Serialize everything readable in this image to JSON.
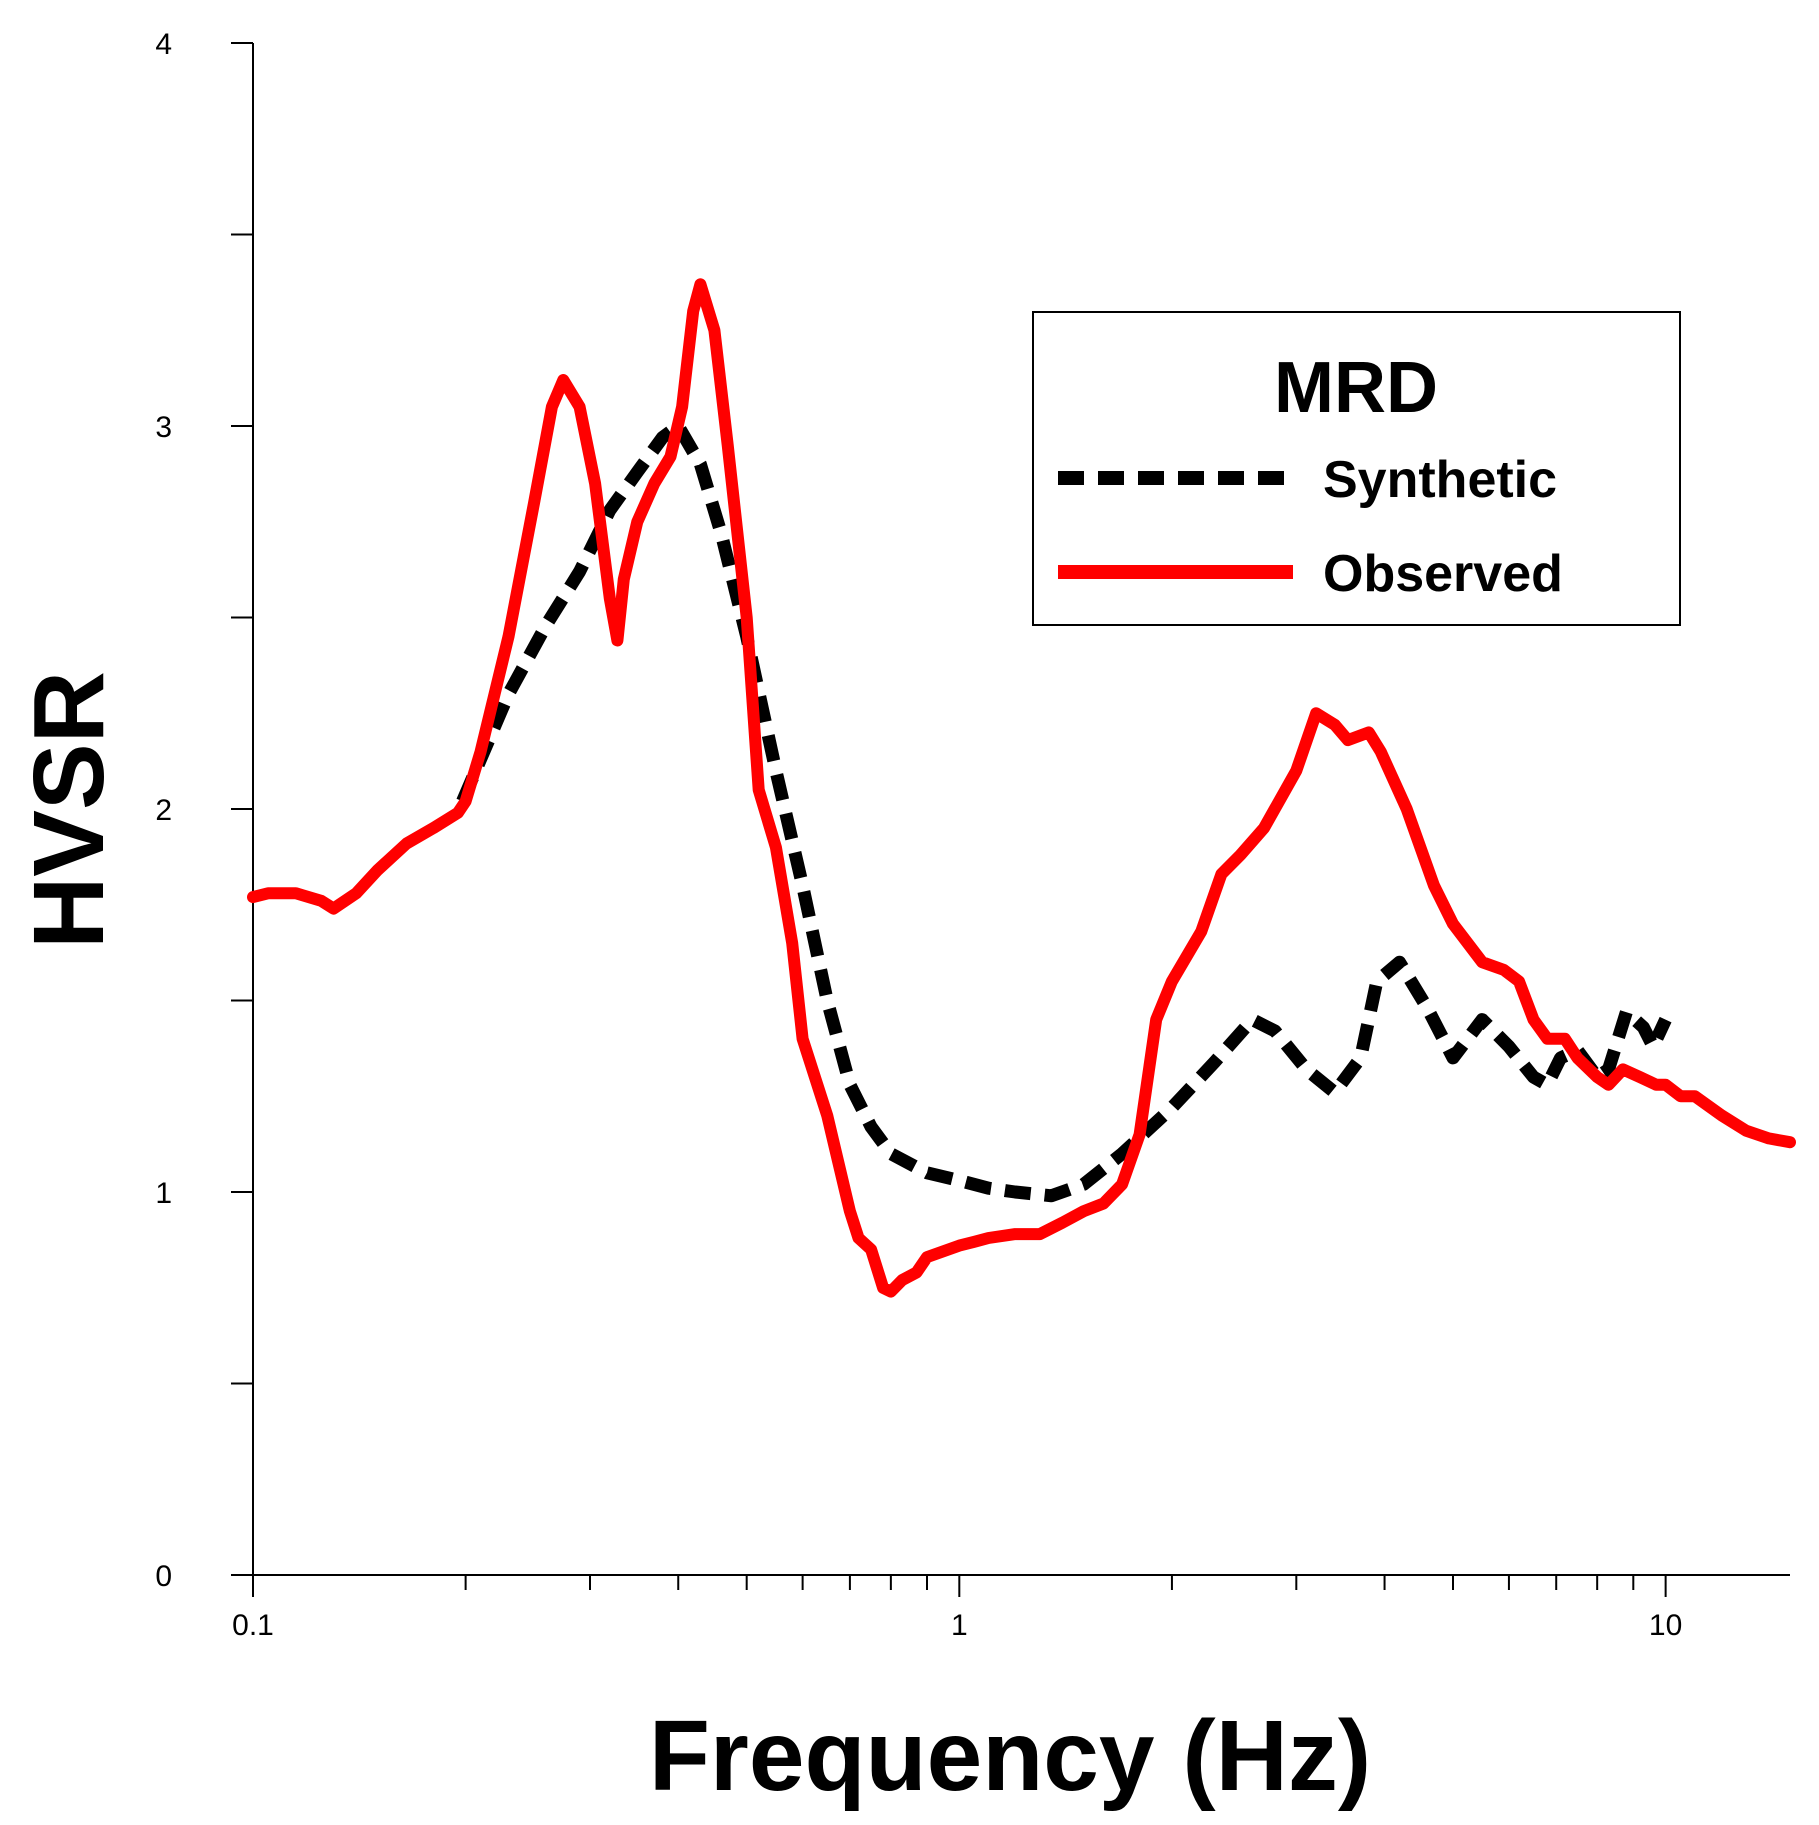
{
  "chart_data": {
    "type": "line",
    "title": "",
    "xlabel": "Frequency (Hz)",
    "ylabel": "HVSR",
    "xscale": "log",
    "xlim": [
      0.1,
      15
    ],
    "ylim": [
      0,
      4
    ],
    "xticks": [
      {
        "value": 0.1,
        "label": "0.1"
      },
      {
        "value": 1,
        "label": "1"
      },
      {
        "value": 10,
        "label": "10"
      }
    ],
    "yticks": [
      {
        "value": 0,
        "label": "0"
      },
      {
        "value": 1,
        "label": "1"
      },
      {
        "value": 2,
        "label": "2"
      },
      {
        "value": 3,
        "label": "3"
      },
      {
        "value": 4,
        "label": "4"
      }
    ],
    "legend": {
      "title": "MRD",
      "position": "top-right"
    },
    "series": [
      {
        "name": "Synthetic",
        "color": "#000000",
        "style": "dashed",
        "points": [
          [
            0.198,
            2.02
          ],
          [
            0.23,
            2.3
          ],
          [
            0.26,
            2.48
          ],
          [
            0.29,
            2.62
          ],
          [
            0.32,
            2.78
          ],
          [
            0.35,
            2.88
          ],
          [
            0.38,
            2.97
          ],
          [
            0.4,
            3.0
          ],
          [
            0.43,
            2.9
          ],
          [
            0.46,
            2.72
          ],
          [
            0.5,
            2.45
          ],
          [
            0.55,
            2.1
          ],
          [
            0.6,
            1.8
          ],
          [
            0.65,
            1.5
          ],
          [
            0.7,
            1.28
          ],
          [
            0.75,
            1.17
          ],
          [
            0.8,
            1.1
          ],
          [
            0.9,
            1.05
          ],
          [
            1.0,
            1.03
          ],
          [
            1.1,
            1.01
          ],
          [
            1.2,
            1.0
          ],
          [
            1.35,
            0.99
          ],
          [
            1.5,
            1.02
          ],
          [
            1.7,
            1.1
          ],
          [
            2.0,
            1.22
          ],
          [
            2.3,
            1.34
          ],
          [
            2.6,
            1.45
          ],
          [
            2.8,
            1.42
          ],
          [
            3.1,
            1.32
          ],
          [
            3.4,
            1.26
          ],
          [
            3.7,
            1.35
          ],
          [
            3.9,
            1.55
          ],
          [
            4.2,
            1.6
          ],
          [
            4.6,
            1.48
          ],
          [
            5.0,
            1.35
          ],
          [
            5.5,
            1.45
          ],
          [
            6.0,
            1.38
          ],
          [
            6.5,
            1.3
          ],
          [
            6.8,
            1.28
          ],
          [
            7.1,
            1.35
          ],
          [
            7.5,
            1.37
          ],
          [
            8.0,
            1.3
          ],
          [
            8.3,
            1.32
          ],
          [
            8.8,
            1.47
          ],
          [
            9.3,
            1.43
          ],
          [
            9.6,
            1.38
          ],
          [
            10.0,
            1.45
          ]
        ]
      },
      {
        "name": "Observed",
        "color": "#ff0000",
        "style": "solid",
        "points": [
          [
            0.1,
            1.77
          ],
          [
            0.105,
            1.78
          ],
          [
            0.115,
            1.78
          ],
          [
            0.125,
            1.76
          ],
          [
            0.13,
            1.74
          ],
          [
            0.14,
            1.78
          ],
          [
            0.15,
            1.84
          ],
          [
            0.165,
            1.91
          ],
          [
            0.18,
            1.95
          ],
          [
            0.195,
            1.99
          ],
          [
            0.2,
            2.02
          ],
          [
            0.21,
            2.15
          ],
          [
            0.23,
            2.45
          ],
          [
            0.25,
            2.8
          ],
          [
            0.265,
            3.05
          ],
          [
            0.275,
            3.12
          ],
          [
            0.29,
            3.05
          ],
          [
            0.305,
            2.85
          ],
          [
            0.32,
            2.55
          ],
          [
            0.328,
            2.44
          ],
          [
            0.335,
            2.6
          ],
          [
            0.35,
            2.75
          ],
          [
            0.37,
            2.85
          ],
          [
            0.39,
            2.92
          ],
          [
            0.405,
            3.05
          ],
          [
            0.42,
            3.3
          ],
          [
            0.43,
            3.37
          ],
          [
            0.45,
            3.25
          ],
          [
            0.47,
            2.95
          ],
          [
            0.5,
            2.5
          ],
          [
            0.52,
            2.05
          ],
          [
            0.55,
            1.9
          ],
          [
            0.58,
            1.65
          ],
          [
            0.6,
            1.4
          ],
          [
            0.65,
            1.2
          ],
          [
            0.7,
            0.95
          ],
          [
            0.72,
            0.88
          ],
          [
            0.75,
            0.85
          ],
          [
            0.78,
            0.75
          ],
          [
            0.8,
            0.74
          ],
          [
            0.83,
            0.77
          ],
          [
            0.87,
            0.79
          ],
          [
            0.9,
            0.83
          ],
          [
            1.0,
            0.86
          ],
          [
            1.05,
            0.87
          ],
          [
            1.1,
            0.88
          ],
          [
            1.2,
            0.89
          ],
          [
            1.3,
            0.89
          ],
          [
            1.4,
            0.92
          ],
          [
            1.5,
            0.95
          ],
          [
            1.6,
            0.97
          ],
          [
            1.7,
            1.02
          ],
          [
            1.8,
            1.15
          ],
          [
            1.9,
            1.45
          ],
          [
            2.0,
            1.55
          ],
          [
            2.2,
            1.68
          ],
          [
            2.35,
            1.83
          ],
          [
            2.5,
            1.88
          ],
          [
            2.7,
            1.95
          ],
          [
            3.0,
            2.1
          ],
          [
            3.2,
            2.25
          ],
          [
            3.4,
            2.22
          ],
          [
            3.55,
            2.18
          ],
          [
            3.8,
            2.2
          ],
          [
            3.95,
            2.15
          ],
          [
            4.3,
            2.0
          ],
          [
            4.7,
            1.8
          ],
          [
            5.0,
            1.7
          ],
          [
            5.5,
            1.6
          ],
          [
            5.9,
            1.58
          ],
          [
            6.2,
            1.55
          ],
          [
            6.5,
            1.45
          ],
          [
            6.8,
            1.4
          ],
          [
            7.2,
            1.4
          ],
          [
            7.5,
            1.35
          ],
          [
            8.0,
            1.3
          ],
          [
            8.3,
            1.28
          ],
          [
            8.7,
            1.32
          ],
          [
            9.2,
            1.3
          ],
          [
            9.7,
            1.28
          ],
          [
            10.0,
            1.28
          ],
          [
            10.5,
            1.25
          ],
          [
            11.0,
            1.25
          ],
          [
            12.0,
            1.2
          ],
          [
            13.0,
            1.16
          ],
          [
            14.0,
            1.14
          ],
          [
            15.0,
            1.13
          ]
        ]
      }
    ]
  }
}
